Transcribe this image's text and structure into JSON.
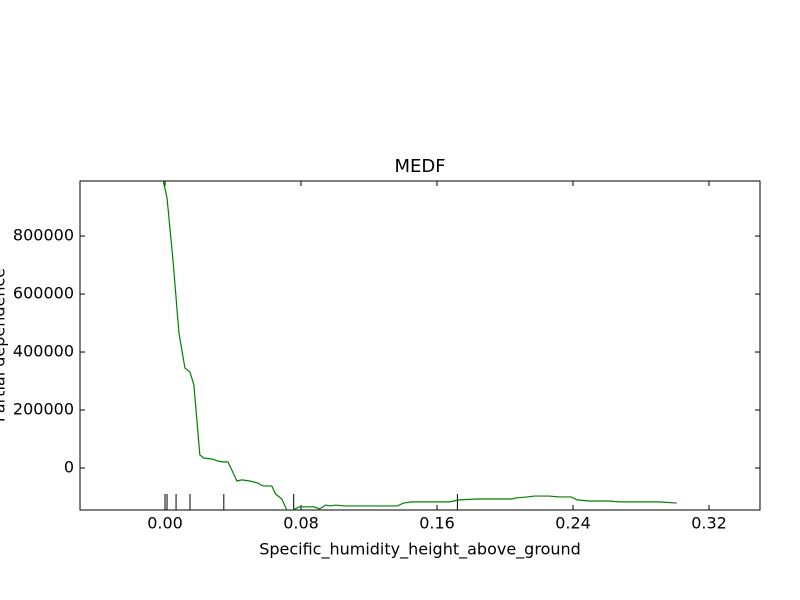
{
  "chart_data": {
    "type": "line",
    "title": "MEDF",
    "x_label": "Specific_humidity_height_above_ground",
    "y_label": "Partial dependence",
    "xlim": [
      -0.05,
      0.35
    ],
    "ylim": [
      -145000,
      990000
    ],
    "xticks": [
      {
        "value": 0.0,
        "label": "0.00"
      },
      {
        "value": 0.08,
        "label": "0.08"
      },
      {
        "value": 0.16,
        "label": "0.16"
      },
      {
        "value": 0.24,
        "label": "0.24"
      },
      {
        "value": 0.32,
        "label": "0.32"
      }
    ],
    "yticks": [
      0,
      200000,
      400000,
      600000,
      800000
    ],
    "deciles": [
      0.0,
      0.0012,
      0.0065,
      0.0147,
      0.0346,
      0.0757,
      0.172
    ],
    "x": [
      -0.001,
      0.0012,
      0.0047,
      0.0082,
      0.0117,
      0.0147,
      0.017,
      0.0205,
      0.0229,
      0.0276,
      0.0311,
      0.0334,
      0.037,
      0.0393,
      0.0423,
      0.0452,
      0.0499,
      0.0546,
      0.0575,
      0.0628,
      0.0651,
      0.0687,
      0.0722,
      0.0792,
      0.0874,
      0.091,
      0.0945,
      0.0974,
      0.1004,
      0.1056,
      0.125,
      0.1367,
      0.1403,
      0.145,
      0.1673,
      0.1731,
      0.1837,
      0.1966,
      0.2036,
      0.2072,
      0.213,
      0.2171,
      0.2259,
      0.2318,
      0.2389,
      0.2424,
      0.2494,
      0.2611,
      0.267,
      0.2905,
      0.301
    ],
    "series": [
      {
        "color": "#008000",
        "values": [
          990000,
          931000,
          717000,
          466000,
          345000,
          331000,
          286000,
          45000,
          34000,
          31000,
          24000,
          21000,
          21000,
          -7000,
          -45000,
          -41000,
          -45000,
          -52000,
          -62000,
          -62000,
          -90000,
          -107000,
          -152000,
          -134000,
          -134000,
          -141000,
          -128000,
          -131000,
          -128000,
          -131000,
          -131000,
          -131000,
          -121000,
          -117000,
          -117000,
          -110000,
          -107000,
          -107000,
          -107000,
          -103000,
          -100000,
          -97000,
          -97000,
          -100000,
          -100000,
          -110000,
          -114000,
          -114000,
          -117000,
          -117000,
          -121000
        ]
      }
    ]
  }
}
